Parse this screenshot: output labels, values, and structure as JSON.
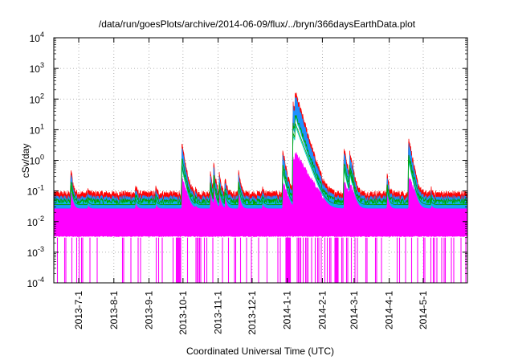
{
  "chart_data": {
    "type": "line",
    "title": "/data/run/goesPlots/archive/2014-06-09/flux/../bryn/366daysEarthData.plot",
    "xlabel": "Coordinated Universal Time (UTC)",
    "ylabel": "cSv/day",
    "x_range": [
      "2013-06-09",
      "2014-06-09"
    ],
    "yscale": "log",
    "ylim": [
      0.0001,
      10000
    ],
    "y_ticks": [
      {
        "value": 0.0001,
        "base": "10",
        "exp": "-4"
      },
      {
        "value": 0.001,
        "base": "10",
        "exp": "-3"
      },
      {
        "value": 0.01,
        "base": "10",
        "exp": "-2"
      },
      {
        "value": 0.1,
        "base": "10",
        "exp": "-1"
      },
      {
        "value": 1,
        "base": "10",
        "exp": "0"
      },
      {
        "value": 10,
        "base": "10",
        "exp": "1"
      },
      {
        "value": 100,
        "base": "10",
        "exp": "2"
      },
      {
        "value": 1000,
        "base": "10",
        "exp": "3"
      },
      {
        "value": 10000,
        "base": "10",
        "exp": "4"
      }
    ],
    "x_ticks": [
      {
        "date": "2013-07-01",
        "label": "2013-7-1"
      },
      {
        "date": "2013-08-01",
        "label": "2013-8-1"
      },
      {
        "date": "2013-09-01",
        "label": "2013-9-1"
      },
      {
        "date": "2013-10-01",
        "label": "2013-10-1"
      },
      {
        "date": "2013-11-01",
        "label": "2013-11-1"
      },
      {
        "date": "2013-12-01",
        "label": "2013-12-1"
      },
      {
        "date": "2014-01-01",
        "label": "2014-1-1"
      },
      {
        "date": "2014-02-01",
        "label": "2014-2-1"
      },
      {
        "date": "2014-03-01",
        "label": "2014-3-1"
      },
      {
        "date": "2014-04-01",
        "label": "2014-4-1"
      },
      {
        "date": "2014-05-01",
        "label": "2014-5-1"
      }
    ],
    "grid": true,
    "series_colors": [
      "#ff0000",
      "#00a000",
      "#00d0d0",
      "#1e90ff",
      "#ff00ff"
    ],
    "baseline": {
      "red": 0.07,
      "green": 0.045,
      "cyan": 0.04,
      "blue": 0.05,
      "magenta_high": 0.035,
      "magenta_low": 0.003
    },
    "events": [
      {
        "date": "2013-06-24",
        "peak": 0.5
      },
      {
        "date": "2013-07-09",
        "peak": 0.1
      },
      {
        "date": "2013-08-20",
        "peak": 0.13
      },
      {
        "date": "2013-09-07",
        "peak": 0.11
      },
      {
        "date": "2013-09-30",
        "peak": 2.8
      },
      {
        "date": "2013-10-12",
        "peak": 0.1
      },
      {
        "date": "2013-10-25",
        "peak": 0.45
      },
      {
        "date": "2013-10-28",
        "peak": 0.7
      },
      {
        "date": "2013-11-02",
        "peak": 0.35
      },
      {
        "date": "2013-11-07",
        "peak": 0.25
      },
      {
        "date": "2013-11-19",
        "peak": 0.45
      },
      {
        "date": "2013-12-10",
        "peak": 0.12
      },
      {
        "date": "2013-12-28",
        "peak": 1.9
      },
      {
        "date": "2014-01-06",
        "peak": 60
      },
      {
        "date": "2014-01-08",
        "peak": 150
      },
      {
        "date": "2014-01-11",
        "peak": 5
      },
      {
        "date": "2014-02-20",
        "peak": 2.5
      },
      {
        "date": "2014-02-25",
        "peak": 1.8
      },
      {
        "date": "2014-02-28",
        "peak": 0.7
      },
      {
        "date": "2014-03-30",
        "peak": 0.35
      },
      {
        "date": "2014-04-18",
        "peak": 5.5
      },
      {
        "date": "2014-05-08",
        "peak": 0.1
      }
    ]
  }
}
